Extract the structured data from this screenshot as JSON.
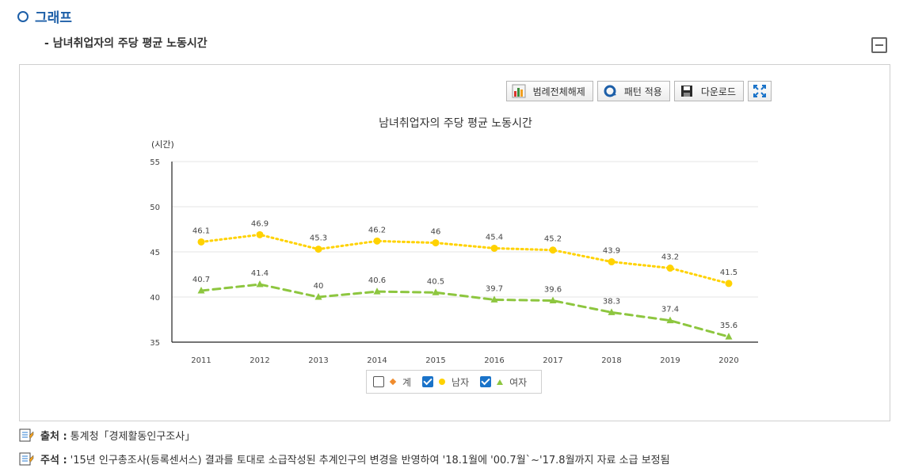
{
  "header": {
    "section_title": "그래프",
    "sub_title": "- 남녀취업자의 주당 평균 노동시간"
  },
  "toolbar": {
    "legend_toggle": "범례전체해제",
    "pattern_apply": "패턴 적용",
    "download": "다운로드"
  },
  "legend": [
    {
      "label": "계",
      "checked": false
    },
    {
      "label": "남자",
      "checked": true
    },
    {
      "label": "여자",
      "checked": true
    }
  ],
  "footer": {
    "source_label": "출처 :",
    "source_text": "통계청「경제활동인구조사」",
    "note_label": "주석 :",
    "note_text": "'15년 인구총조사(등록센서스) 결과를 토대로 소급작성된 추계인구의 변경을 반영하여 '18.1월에 '00.7월`~'17.8월까지 자료 소급 보정됨"
  },
  "colors": {
    "male": "#ffd200",
    "female": "#8dc63f",
    "total": "#f08c2e",
    "title_blue": "#1d5fa8"
  },
  "chart_data": {
    "type": "line",
    "title": "남녀취업자의 주당 평균 노동시간",
    "ylabel": "(시간)",
    "xlabel": "",
    "ylim": [
      35,
      55
    ],
    "yticks": [
      35,
      40,
      45,
      50,
      55
    ],
    "categories": [
      "2011",
      "2012",
      "2013",
      "2014",
      "2015",
      "2016",
      "2017",
      "2018",
      "2019",
      "2020"
    ],
    "series": [
      {
        "name": "남자",
        "marker": "circle",
        "values": [
          46.1,
          46.9,
          45.3,
          46.2,
          46,
          45.4,
          45.2,
          43.9,
          43.2,
          41.5
        ]
      },
      {
        "name": "여자",
        "marker": "triangle",
        "values": [
          40.7,
          41.4,
          40,
          40.6,
          40.5,
          39.7,
          39.6,
          38.3,
          37.4,
          35.6
        ]
      }
    ]
  }
}
